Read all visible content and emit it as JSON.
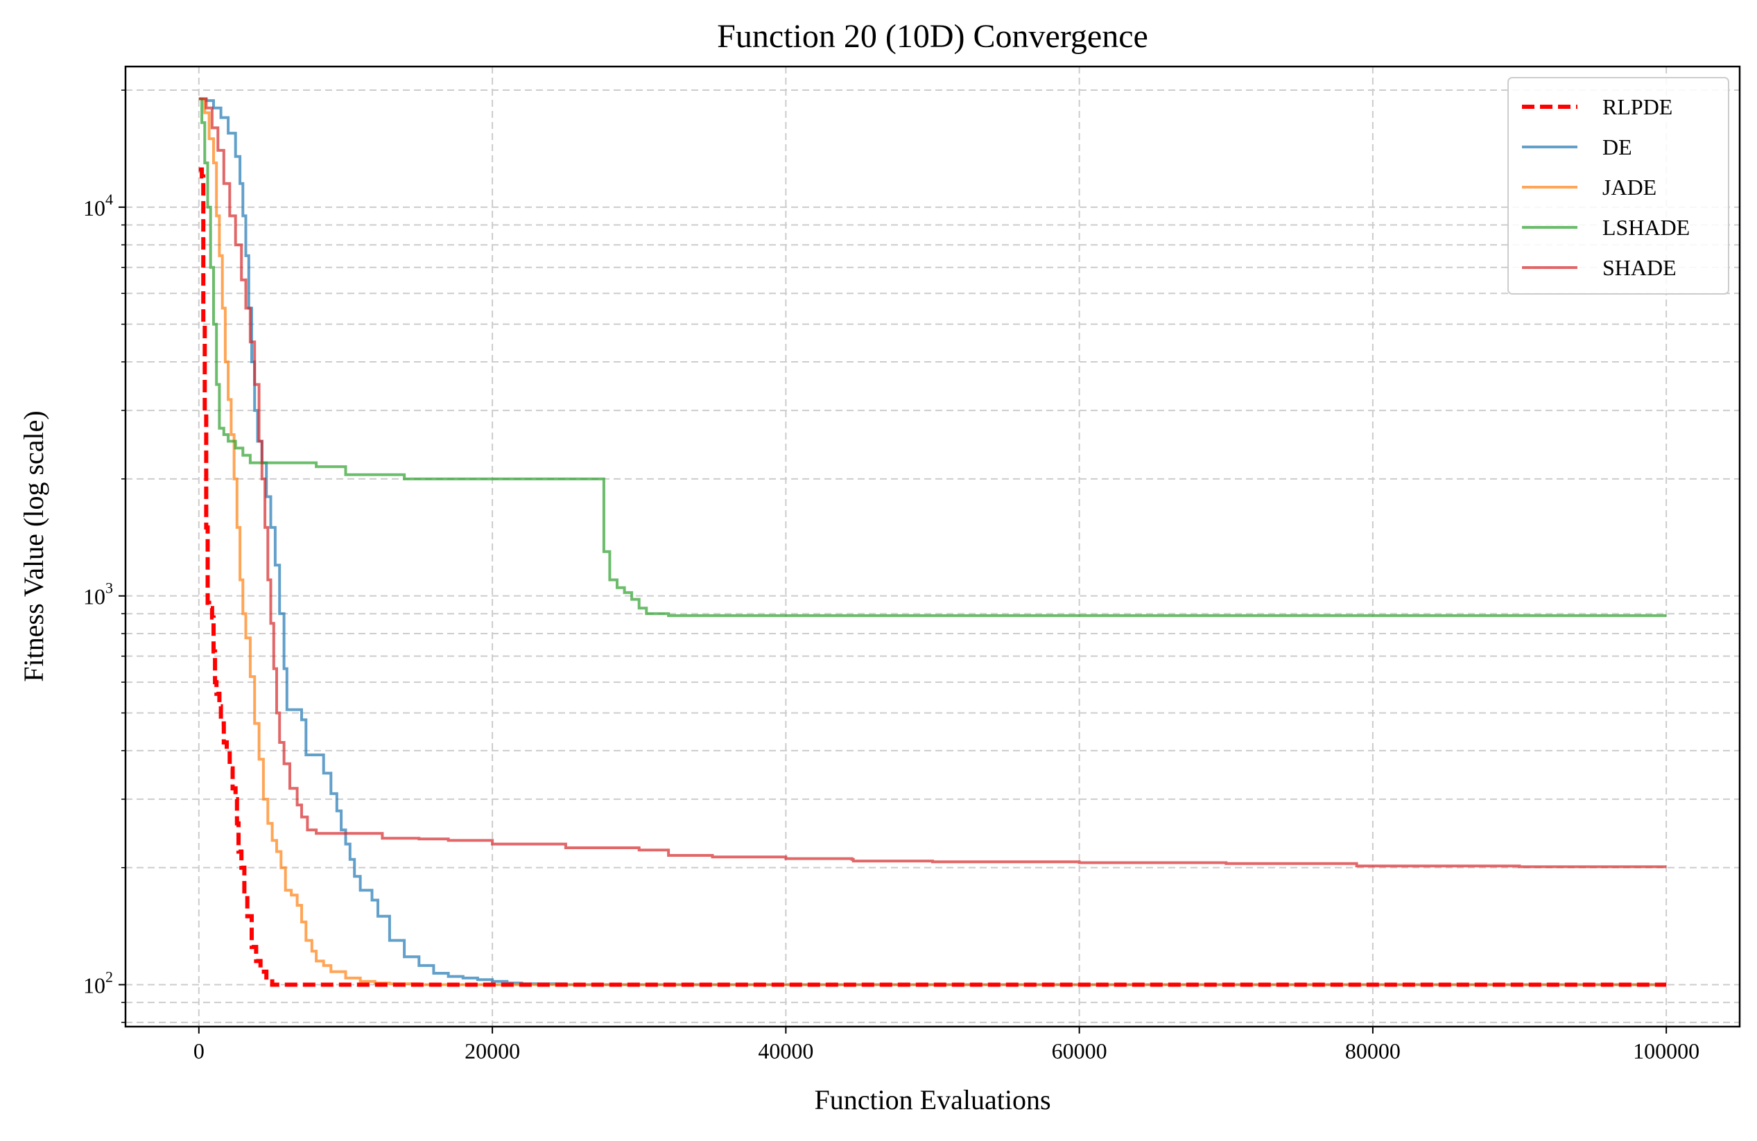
{
  "chart_data": {
    "type": "line",
    "title": "Function 20 (10D) Convergence",
    "xlabel": "Function Evaluations",
    "ylabel": "Fitness Value (log scale)",
    "xlim": [
      -5000,
      105000
    ],
    "ylim": [
      78,
      23000
    ],
    "yscale": "log",
    "grid": true,
    "legend_position": "top-right",
    "x_ticks": [
      0,
      20000,
      40000,
      60000,
      80000,
      100000
    ],
    "x_tick_labels": [
      "0",
      "20000",
      "40000",
      "60000",
      "80000",
      "100000"
    ],
    "y_ticks": [
      {
        "value": 100,
        "base": "10",
        "exp": "2"
      },
      {
        "value": 1000,
        "base": "10",
        "exp": "3"
      },
      {
        "value": 10000,
        "base": "10",
        "exp": "4"
      }
    ],
    "series": [
      {
        "name": "RLPDE",
        "color": "#ff0000",
        "style": "dashed",
        "points": [
          [
            0,
            12500
          ],
          [
            200,
            12000
          ],
          [
            300,
            5000
          ],
          [
            400,
            3000
          ],
          [
            500,
            1500
          ],
          [
            600,
            960
          ],
          [
            700,
            930
          ],
          [
            900,
            880
          ],
          [
            1000,
            720
          ],
          [
            1100,
            600
          ],
          [
            1200,
            560
          ],
          [
            1400,
            520
          ],
          [
            1500,
            470
          ],
          [
            1700,
            420
          ],
          [
            1900,
            400
          ],
          [
            2100,
            360
          ],
          [
            2300,
            320
          ],
          [
            2500,
            300
          ],
          [
            2600,
            260
          ],
          [
            2700,
            220
          ],
          [
            2900,
            200
          ],
          [
            3100,
            170
          ],
          [
            3300,
            150
          ],
          [
            3600,
            125
          ],
          [
            3900,
            115
          ],
          [
            4200,
            108
          ],
          [
            4600,
            102
          ],
          [
            5000,
            100
          ],
          [
            7000,
            100
          ],
          [
            10000,
            100
          ],
          [
            100000,
            100
          ]
        ]
      },
      {
        "name": "DE",
        "color": "#1f77b4",
        "style": "solid",
        "points": [
          [
            0,
            19000
          ],
          [
            500,
            18800
          ],
          [
            1000,
            18000
          ],
          [
            1500,
            17000
          ],
          [
            2000,
            15500
          ],
          [
            2500,
            13500
          ],
          [
            2800,
            11500
          ],
          [
            3000,
            9500
          ],
          [
            3200,
            7500
          ],
          [
            3400,
            5500
          ],
          [
            3600,
            4000
          ],
          [
            3800,
            3000
          ],
          [
            4000,
            2500
          ],
          [
            4300,
            2200
          ],
          [
            4600,
            1800
          ],
          [
            4900,
            1500
          ],
          [
            5200,
            1200
          ],
          [
            5500,
            900
          ],
          [
            5800,
            650
          ],
          [
            6000,
            510
          ],
          [
            7000,
            480
          ],
          [
            7300,
            390
          ],
          [
            8200,
            390
          ],
          [
            8500,
            350
          ],
          [
            9000,
            310
          ],
          [
            9400,
            280
          ],
          [
            9700,
            250
          ],
          [
            10000,
            230
          ],
          [
            10300,
            210
          ],
          [
            10600,
            190
          ],
          [
            11000,
            175
          ],
          [
            11800,
            165
          ],
          [
            12200,
            150
          ],
          [
            13000,
            130
          ],
          [
            14000,
            118
          ],
          [
            15000,
            112
          ],
          [
            16000,
            107
          ],
          [
            17000,
            105
          ],
          [
            18000,
            104
          ],
          [
            19000,
            103
          ],
          [
            20000,
            102
          ],
          [
            21000,
            101
          ],
          [
            22000,
            100.5
          ],
          [
            25000,
            100
          ],
          [
            100000,
            100
          ]
        ]
      },
      {
        "name": "JADE",
        "color": "#ff7f0e",
        "style": "solid",
        "points": [
          [
            0,
            19000
          ],
          [
            400,
            17500
          ],
          [
            700,
            15000
          ],
          [
            1000,
            13000
          ],
          [
            1200,
            9500
          ],
          [
            1400,
            7500
          ],
          [
            1600,
            5500
          ],
          [
            1800,
            4000
          ],
          [
            2000,
            3200
          ],
          [
            2200,
            2600
          ],
          [
            2400,
            2000
          ],
          [
            2600,
            1500
          ],
          [
            2800,
            1100
          ],
          [
            3000,
            900
          ],
          [
            3200,
            780
          ],
          [
            3500,
            620
          ],
          [
            3800,
            470
          ],
          [
            4100,
            380
          ],
          [
            4400,
            300
          ],
          [
            4700,
            260
          ],
          [
            5000,
            235
          ],
          [
            5300,
            220
          ],
          [
            5600,
            200
          ],
          [
            5900,
            175
          ],
          [
            6300,
            170
          ],
          [
            6700,
            160
          ],
          [
            7000,
            145
          ],
          [
            7300,
            130
          ],
          [
            7700,
            122
          ],
          [
            8000,
            115
          ],
          [
            8500,
            112
          ],
          [
            9000,
            108
          ],
          [
            10000,
            104
          ],
          [
            11000,
            102
          ],
          [
            12000,
            101
          ],
          [
            13000,
            100.5
          ],
          [
            15000,
            100
          ],
          [
            100000,
            100
          ]
        ]
      },
      {
        "name": "LSHADE",
        "color": "#2ca02c",
        "style": "solid",
        "points": [
          [
            0,
            19000
          ],
          [
            200,
            16500
          ],
          [
            400,
            13000
          ],
          [
            600,
            10000
          ],
          [
            800,
            7000
          ],
          [
            1000,
            5000
          ],
          [
            1200,
            3500
          ],
          [
            1400,
            2700
          ],
          [
            1700,
            2600
          ],
          [
            2000,
            2500
          ],
          [
            2500,
            2400
          ],
          [
            3000,
            2300
          ],
          [
            3500,
            2200
          ],
          [
            4000,
            2200
          ],
          [
            5000,
            2200
          ],
          [
            8000,
            2150
          ],
          [
            10000,
            2050
          ],
          [
            12000,
            2050
          ],
          [
            14000,
            2000
          ],
          [
            20000,
            2000
          ],
          [
            26000,
            2000
          ],
          [
            27500,
            2000
          ],
          [
            27600,
            1300
          ],
          [
            28000,
            1100
          ],
          [
            28500,
            1050
          ],
          [
            29000,
            1020
          ],
          [
            29500,
            980
          ],
          [
            30000,
            930
          ],
          [
            30500,
            900
          ],
          [
            32000,
            890
          ],
          [
            40000,
            890
          ],
          [
            60000,
            890
          ],
          [
            80000,
            890
          ],
          [
            100000,
            890
          ]
        ]
      },
      {
        "name": "SHADE",
        "color": "#d62728",
        "style": "solid",
        "points": [
          [
            0,
            19000
          ],
          [
            500,
            18000
          ],
          [
            900,
            16000
          ],
          [
            1300,
            14000
          ],
          [
            1700,
            11500
          ],
          [
            2100,
            9500
          ],
          [
            2500,
            8000
          ],
          [
            2900,
            6500
          ],
          [
            3200,
            5500
          ],
          [
            3500,
            4500
          ],
          [
            3800,
            3500
          ],
          [
            4100,
            2500
          ],
          [
            4300,
            2000
          ],
          [
            4500,
            1500
          ],
          [
            4700,
            1100
          ],
          [
            4900,
            850
          ],
          [
            5100,
            650
          ],
          [
            5300,
            500
          ],
          [
            5500,
            420
          ],
          [
            5800,
            370
          ],
          [
            6200,
            320
          ],
          [
            6700,
            290
          ],
          [
            7000,
            270
          ],
          [
            7400,
            250
          ],
          [
            8000,
            245
          ],
          [
            10000,
            245
          ],
          [
            12000,
            245
          ],
          [
            12500,
            238
          ],
          [
            15000,
            237
          ],
          [
            17000,
            235
          ],
          [
            20000,
            230
          ],
          [
            25000,
            225
          ],
          [
            30000,
            222
          ],
          [
            32000,
            215
          ],
          [
            35000,
            213
          ],
          [
            40000,
            211
          ],
          [
            44500,
            210
          ],
          [
            44600,
            208
          ],
          [
            50000,
            207
          ],
          [
            60000,
            206
          ],
          [
            70000,
            205
          ],
          [
            75000,
            205
          ],
          [
            78800,
            205
          ],
          [
            78900,
            202
          ],
          [
            90000,
            201
          ],
          [
            100000,
            201
          ]
        ]
      }
    ]
  }
}
